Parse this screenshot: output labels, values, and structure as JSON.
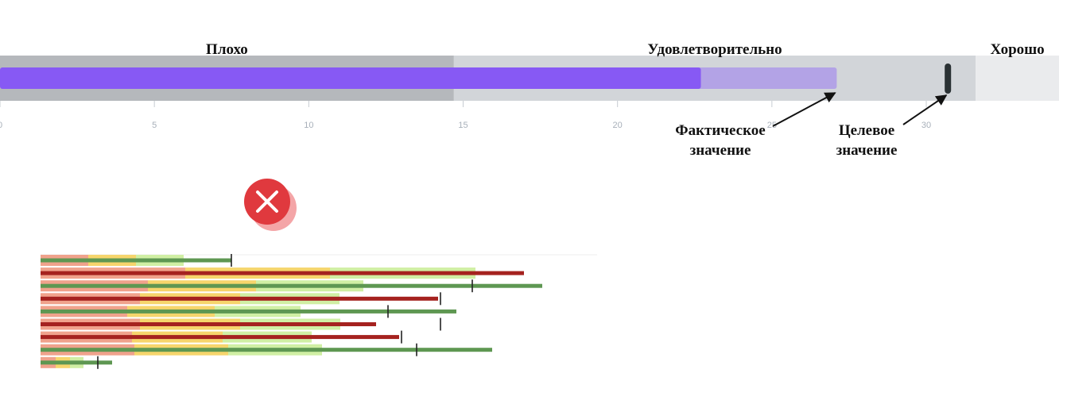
{
  "chart_data": [
    {
      "type": "bullet",
      "ranges": [
        {
          "label": "Плохо",
          "end": 14.7,
          "color": "#b5b8bc"
        },
        {
          "label": "Удовлетворительно",
          "end": 31.6,
          "color": "#d2d5d9"
        },
        {
          "label": "Хорошо",
          "end": 34.3,
          "color": "#eaebed"
        }
      ],
      "xlim": [
        0,
        34.3
      ],
      "xticks": [
        0,
        5,
        10,
        15,
        20,
        25,
        30
      ],
      "bars": [
        {
          "value": 27.1,
          "color": "#b3a3e6"
        },
        {
          "value": 22.7,
          "color": "#8759f4"
        }
      ],
      "target": 30.7,
      "target_color": "#2a3134",
      "annotations": {
        "actual": [
          "Фактическое",
          "значение"
        ],
        "target": [
          "Целевое",
          "значение"
        ]
      }
    },
    {
      "type": "bullet-rows",
      "xlim": [
        0,
        70
      ],
      "band_colors": [
        "#f0a28c",
        "#f6d56c",
        "#d0efa4"
      ],
      "rows": [
        {
          "bands": [
            6,
            12,
            18
          ],
          "value": 24,
          "target": 24,
          "color": "#5e9752"
        },
        {
          "bands": [
            18.2,
            36.4,
            54.7
          ],
          "value": 60.8,
          "target": null,
          "color": "#a5221f"
        },
        {
          "bands": [
            13.5,
            27.1,
            40.6
          ],
          "value": 63.1,
          "target": 54.3,
          "color": "#5e9752"
        },
        {
          "bands": [
            12.5,
            25.1,
            37.6
          ],
          "value": 50,
          "target": 50.3,
          "color": "#a5221f"
        },
        {
          "bands": [
            10.9,
            21.9,
            32.7
          ],
          "value": 52.3,
          "target": 43.7,
          "color": "#5e9752"
        },
        {
          "bands": [
            12.5,
            25.1,
            37.7
          ],
          "value": 42.2,
          "target": 50.3,
          "color": "#a5221f"
        },
        {
          "bands": [
            11.5,
            22.9,
            34.1
          ],
          "value": 45.1,
          "target": 45.4,
          "color": "#a5221f"
        },
        {
          "bands": [
            11.8,
            23.6,
            35.4
          ],
          "value": 56.8,
          "target": 47.3,
          "color": "#5e9752"
        },
        {
          "bands": [
            1.9,
            3.7,
            5.4
          ],
          "value": 9,
          "target": 7.2,
          "color": "#5e9752"
        }
      ]
    }
  ]
}
